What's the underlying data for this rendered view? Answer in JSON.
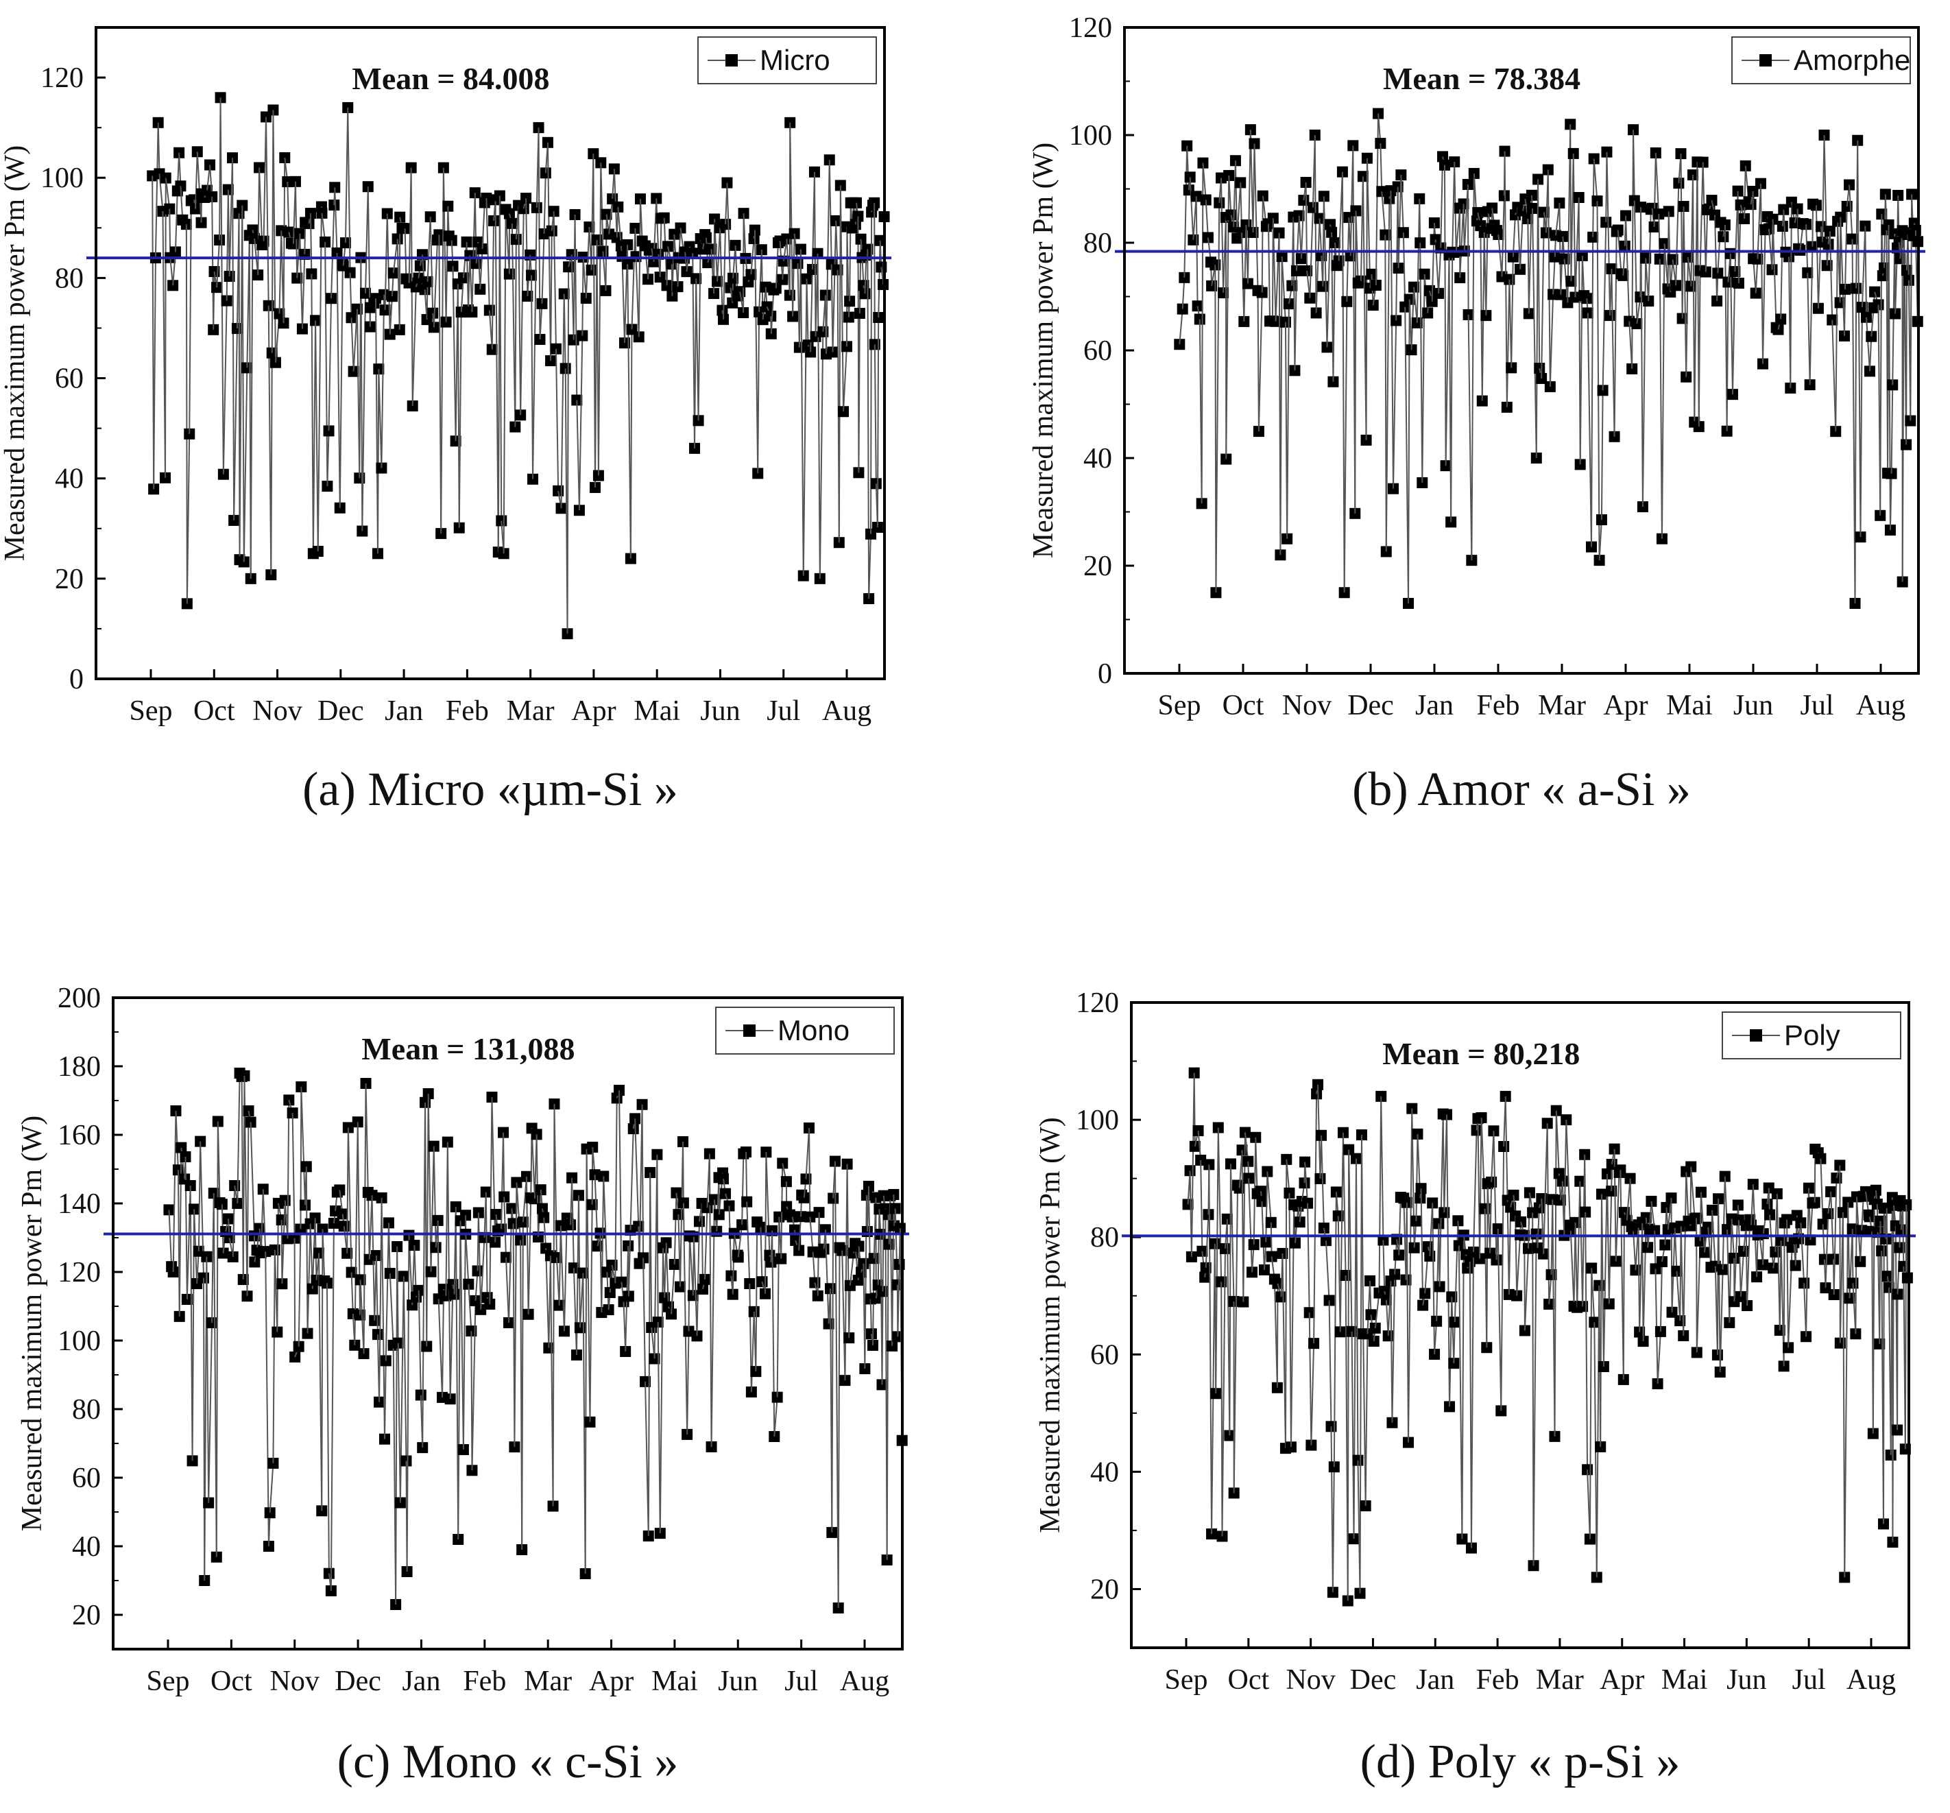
{
  "chart_data": [
    {
      "type": "scatter",
      "id": "a",
      "caption": "(a) Micro «µm-Si »",
      "ylabel": "Measured maximum power Pm (W)",
      "xlabel": "",
      "categories": [
        "Sep",
        "Oct",
        "Nov",
        "Dec",
        "Jan",
        "Feb",
        "Mar",
        "Apr",
        "Mai",
        "Jun",
        "Jul",
        "Aug"
      ],
      "ylim": [
        0,
        130
      ],
      "yticks": [
        0,
        20,
        40,
        60,
        80,
        100,
        120
      ],
      "mean": 84.008,
      "mean_label": "Mean = 84.008",
      "mean_color": "#1f24a8",
      "series": [
        {
          "name": "Micro",
          "color": "#000000",
          "marker": "square"
        }
      ],
      "legend": "top-right",
      "monthly_range": [
        {
          "month": "Sep",
          "min": 15,
          "max": 111,
          "center": 92
        },
        {
          "month": "Oct",
          "min": 20,
          "max": 116,
          "center": 78
        },
        {
          "month": "Nov",
          "min": 25,
          "max": 104,
          "center": 82
        },
        {
          "month": "Dec",
          "min": 25,
          "max": 114,
          "center": 75
        },
        {
          "month": "Jan",
          "min": 29,
          "max": 102,
          "center": 80
        },
        {
          "month": "Feb",
          "min": 25,
          "max": 97,
          "center": 84
        },
        {
          "month": "Mar",
          "min": 9,
          "max": 110,
          "center": 80
        },
        {
          "month": "Apr",
          "min": 24,
          "max": 103,
          "center": 82
        },
        {
          "month": "Mai",
          "min": 46,
          "max": 92,
          "center": 84
        },
        {
          "month": "Jun",
          "min": 41,
          "max": 99,
          "center": 80
        },
        {
          "month": "Jul",
          "min": 20,
          "max": 111,
          "center": 80
        },
        {
          "month": "Aug",
          "min": 16,
          "max": 95,
          "center": 84
        }
      ]
    },
    {
      "type": "scatter",
      "id": "b",
      "caption": "(b) Amor « a-Si »",
      "ylabel": "Measured maximum power Pm (W)",
      "xlabel": "",
      "categories": [
        "Sep",
        "Oct",
        "Nov",
        "Dec",
        "Jan",
        "Feb",
        "Mar",
        "Apr",
        "Mai",
        "Jun",
        "Jul",
        "Aug"
      ],
      "ylim": [
        0,
        120
      ],
      "yticks": [
        0,
        20,
        40,
        60,
        80,
        100,
        120
      ],
      "mean": 78.384,
      "mean_label": "Mean = 78.384",
      "mean_color": "#1f24a8",
      "series": [
        {
          "name": "Amorphe",
          "color": "#000000",
          "marker": "square"
        }
      ],
      "legend": "top-right",
      "monthly_range": [
        {
          "month": "Sep",
          "min": 15,
          "max": 98,
          "center": 80
        },
        {
          "month": "Oct",
          "min": 22,
          "max": 101,
          "center": 78
        },
        {
          "month": "Nov",
          "min": 15,
          "max": 100,
          "center": 72
        },
        {
          "month": "Dec",
          "min": 13,
          "max": 104,
          "center": 74
        },
        {
          "month": "Jan",
          "min": 21,
          "max": 96,
          "center": 78
        },
        {
          "month": "Feb",
          "min": 40,
          "max": 97,
          "center": 80
        },
        {
          "month": "Mar",
          "min": 21,
          "max": 102,
          "center": 78
        },
        {
          "month": "Apr",
          "min": 25,
          "max": 101,
          "center": 76
        },
        {
          "month": "Mai",
          "min": 45,
          "max": 95,
          "center": 80
        },
        {
          "month": "Jun",
          "min": 53,
          "max": 91,
          "center": 80
        },
        {
          "month": "Jul",
          "min": 13,
          "max": 100,
          "center": 76
        },
        {
          "month": "Aug",
          "min": 17,
          "max": 89,
          "center": 78
        }
      ]
    },
    {
      "type": "scatter",
      "id": "c",
      "caption": "(c) Mono « c-Si »",
      "ylabel": "Measured maximum power Pm (W)",
      "xlabel": "",
      "categories": [
        "Sep",
        "Oct",
        "Nov",
        "Dec",
        "Jan",
        "Feb",
        "Mar",
        "Apr",
        "Mai",
        "Jun",
        "Jul",
        "Aug"
      ],
      "ylim": [
        10,
        200
      ],
      "yticks": [
        20,
        40,
        60,
        80,
        100,
        120,
        140,
        160,
        180,
        200
      ],
      "mean": 131.088,
      "mean_label": "Mean = 131,088",
      "mean_color": "#1f24a8",
      "series": [
        {
          "name": "Mono",
          "color": "#000000",
          "marker": "square"
        }
      ],
      "legend": "top-right",
      "monthly_range": [
        {
          "month": "Sep",
          "min": 30,
          "max": 167,
          "center": 130
        },
        {
          "month": "Oct",
          "min": 40,
          "max": 178,
          "center": 125
        },
        {
          "month": "Nov",
          "min": 27,
          "max": 174,
          "center": 120
        },
        {
          "month": "Dec",
          "min": 23,
          "max": 175,
          "center": 120
        },
        {
          "month": "Jan",
          "min": 42,
          "max": 172,
          "center": 128
        },
        {
          "month": "Feb",
          "min": 39,
          "max": 171,
          "center": 128
        },
        {
          "month": "Mar",
          "min": 32,
          "max": 169,
          "center": 125
        },
        {
          "month": "Apr",
          "min": 43,
          "max": 173,
          "center": 125
        },
        {
          "month": "Mai",
          "min": 69,
          "max": 158,
          "center": 128
        },
        {
          "month": "Jun",
          "min": 72,
          "max": 155,
          "center": 128
        },
        {
          "month": "Jul",
          "min": 22,
          "max": 162,
          "center": 125
        },
        {
          "month": "Aug",
          "min": 36,
          "max": 145,
          "center": 128
        }
      ]
    },
    {
      "type": "scatter",
      "id": "d",
      "caption": "(d) Poly « p-Si »",
      "ylabel": "Measured maximum power Pm (W)",
      "xlabel": "",
      "categories": [
        "Sep",
        "Oct",
        "Nov",
        "Dec",
        "Jan",
        "Feb",
        "Mar",
        "Apr",
        "Mai",
        "Jun",
        "Jul",
        "Aug"
      ],
      "ylim": [
        10,
        120
      ],
      "yticks": [
        20,
        40,
        60,
        80,
        100,
        120
      ],
      "mean": 80.218,
      "mean_label": "Mean = 80,218",
      "mean_color": "#1f24a8",
      "series": [
        {
          "name": "Poly",
          "color": "#000000",
          "marker": "square"
        }
      ],
      "legend": "top-right",
      "monthly_range": [
        {
          "month": "Sep",
          "min": 29,
          "max": 108,
          "center": 82
        },
        {
          "month": "Oct",
          "min": 44,
          "max": 97,
          "center": 82
        },
        {
          "month": "Nov",
          "min": 18,
          "max": 106,
          "center": 78
        },
        {
          "month": "Dec",
          "min": 45,
          "max": 104,
          "center": 78
        },
        {
          "month": "Jan",
          "min": 27,
          "max": 101,
          "center": 78
        },
        {
          "month": "Feb",
          "min": 24,
          "max": 104,
          "center": 78
        },
        {
          "month": "Mar",
          "min": 22,
          "max": 100,
          "center": 78
        },
        {
          "month": "Apr",
          "min": 55,
          "max": 90,
          "center": 80
        },
        {
          "month": "Mai",
          "min": 57,
          "max": 92,
          "center": 80
        },
        {
          "month": "Jun",
          "min": 58,
          "max": 89,
          "center": 80
        },
        {
          "month": "Jul",
          "min": 22,
          "max": 95,
          "center": 80
        },
        {
          "month": "Aug",
          "min": 28,
          "max": 88,
          "center": 80
        }
      ]
    }
  ]
}
